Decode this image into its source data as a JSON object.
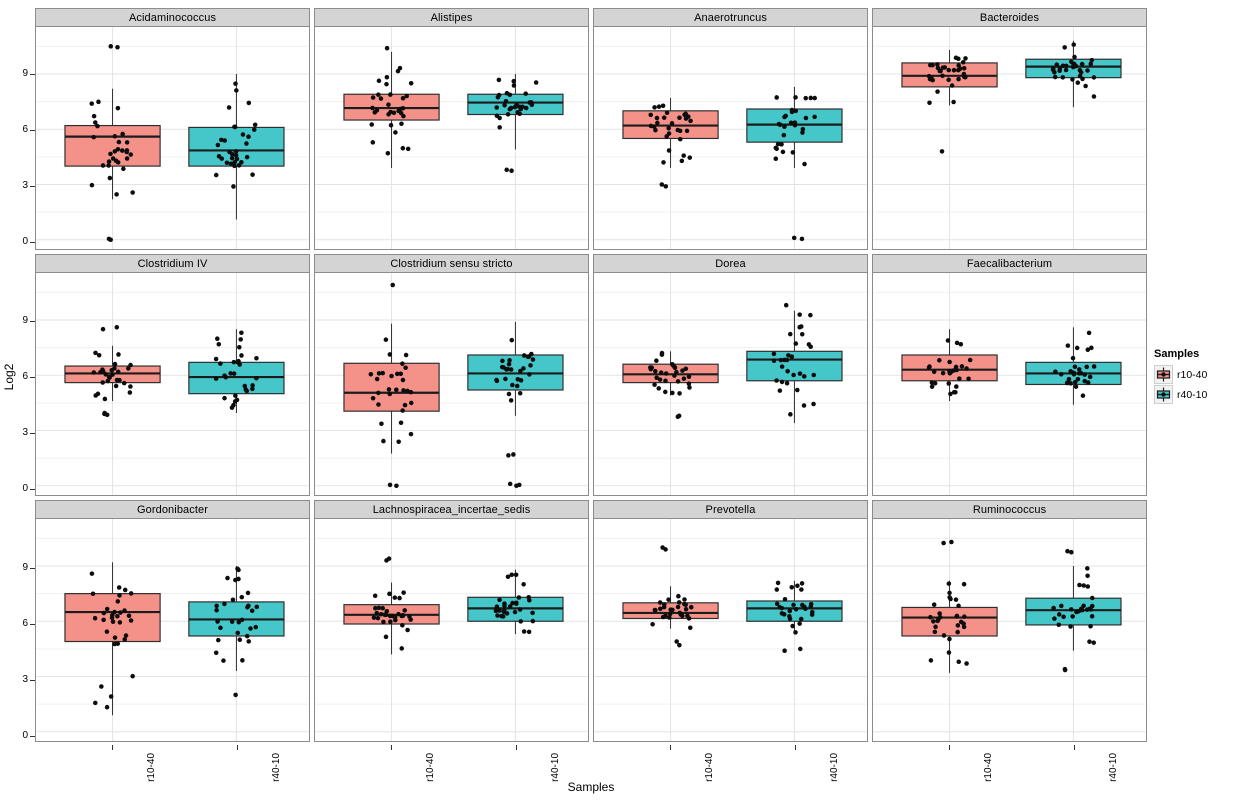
{
  "figure": {
    "x_axis_title": "Samples",
    "y_axis_title": "Log2",
    "legend": {
      "title": "Samples",
      "items": [
        {
          "label": "r10-40",
          "color": "#F4928A"
        },
        {
          "label": "r40-10",
          "color": "#45C6C8"
        }
      ]
    }
  },
  "chart_data": {
    "type": "boxplot",
    "description": "Faceted boxplots with jittered points; 12 genus panels, two sample groups each, y = Log2 abundance",
    "categories": [
      "r10-40",
      "r40-10"
    ],
    "y_ticks": [
      0,
      3,
      6,
      9
    ],
    "y_minor_ticks": [
      1.5,
      4.5,
      7.5,
      10.5
    ],
    "ylim": [
      -0.5,
      11.55
    ],
    "xlabel": "Samples",
    "ylabel": "Log2",
    "legend_position": "right",
    "series_colors": {
      "r10-40": "#F4928A",
      "r40-10": "#45C6C8"
    },
    "panels": [
      {
        "title": "Acidaminococcus",
        "groups": [
          {
            "name": "r10-40",
            "whisker_low": 2.2,
            "q1": 4.0,
            "median": 5.6,
            "q3": 6.2,
            "whisker_high": 8.2,
            "outliers": [
              10.5,
              10.45,
              0.0,
              0.05
            ],
            "n_points": 30,
            "seed": 11
          },
          {
            "name": "r40-10",
            "whisker_low": 1.1,
            "q1": 4.0,
            "median": 4.85,
            "q3": 6.1,
            "whisker_high": 9.0,
            "outliers": [],
            "n_points": 32,
            "seed": 12
          }
        ]
      },
      {
        "title": "Alistipes",
        "groups": [
          {
            "name": "r10-40",
            "whisker_low": 3.9,
            "q1": 6.5,
            "median": 7.15,
            "q3": 7.9,
            "whisker_high": 10.2,
            "outliers": [
              10.4
            ],
            "n_points": 32,
            "seed": 21
          },
          {
            "name": "r40-10",
            "whisker_low": 4.9,
            "q1": 6.8,
            "median": 7.45,
            "q3": 7.9,
            "whisker_high": 9.0,
            "outliers": [
              3.8,
              3.75
            ],
            "n_points": 30,
            "seed": 22
          }
        ]
      },
      {
        "title": "Anaerotruncus",
        "groups": [
          {
            "name": "r10-40",
            "whisker_low": 3.9,
            "q1": 5.5,
            "median": 6.2,
            "q3": 7.0,
            "whisker_high": 7.7,
            "outliers": [
              2.9,
              3.0
            ],
            "n_points": 30,
            "seed": 31
          },
          {
            "name": "r40-10",
            "whisker_low": 3.9,
            "q1": 5.3,
            "median": 6.25,
            "q3": 7.1,
            "whisker_high": 8.3,
            "outliers": [
              0.1,
              0.05
            ],
            "n_points": 30,
            "seed": 32
          }
        ]
      },
      {
        "title": "Bacteroides",
        "groups": [
          {
            "name": "r10-40",
            "whisker_low": 7.3,
            "q1": 8.3,
            "median": 8.9,
            "q3": 9.6,
            "whisker_high": 10.3,
            "outliers": [
              4.8
            ],
            "n_points": 32,
            "seed": 41
          },
          {
            "name": "r40-10",
            "whisker_low": 7.2,
            "q1": 8.8,
            "median": 9.4,
            "q3": 9.8,
            "whisker_high": 10.8,
            "outliers": [],
            "n_points": 32,
            "seed": 42
          }
        ]
      },
      {
        "title": "Clostridium IV",
        "groups": [
          {
            "name": "r10-40",
            "whisker_low": 4.6,
            "q1": 5.6,
            "median": 6.1,
            "q3": 6.5,
            "whisker_high": 7.6,
            "outliers": [
              8.5,
              8.6,
              3.9,
              3.95,
              3.85
            ],
            "n_points": 28,
            "seed": 51
          },
          {
            "name": "r40-10",
            "whisker_low": 3.95,
            "q1": 5.0,
            "median": 5.9,
            "q3": 6.7,
            "whisker_high": 8.5,
            "outliers": [],
            "n_points": 30,
            "seed": 52
          }
        ]
      },
      {
        "title": "Clostridium sensu stricto",
        "groups": [
          {
            "name": "r10-40",
            "whisker_low": 1.75,
            "q1": 4.05,
            "median": 5.05,
            "q3": 6.65,
            "whisker_high": 8.8,
            "outliers": [
              10.9,
              0.05,
              0.0
            ],
            "n_points": 30,
            "seed": 61
          },
          {
            "name": "r40-10",
            "whisker_low": 3.8,
            "q1": 5.2,
            "median": 6.1,
            "q3": 7.1,
            "whisker_high": 8.9,
            "outliers": [
              1.7,
              1.65,
              0.1,
              0.05,
              0.0
            ],
            "n_points": 28,
            "seed": 62
          }
        ]
      },
      {
        "title": "Dorea",
        "groups": [
          {
            "name": "r10-40",
            "whisker_low": 4.9,
            "q1": 5.6,
            "median": 6.05,
            "q3": 6.6,
            "whisker_high": 7.3,
            "outliers": [
              3.8,
              3.75
            ],
            "n_points": 30,
            "seed": 71
          },
          {
            "name": "r40-10",
            "whisker_low": 3.4,
            "q1": 5.7,
            "median": 6.85,
            "q3": 7.3,
            "whisker_high": 9.5,
            "outliers": [
              9.8
            ],
            "n_points": 30,
            "seed": 72
          }
        ]
      },
      {
        "title": "Faecalibacterium",
        "groups": [
          {
            "name": "r10-40",
            "whisker_low": 4.6,
            "q1": 5.7,
            "median": 6.3,
            "q3": 7.1,
            "whisker_high": 8.5,
            "outliers": [],
            "n_points": 28,
            "seed": 81
          },
          {
            "name": "r40-10",
            "whisker_low": 4.4,
            "q1": 5.5,
            "median": 6.1,
            "q3": 6.7,
            "whisker_high": 8.6,
            "outliers": [],
            "n_points": 30,
            "seed": 82
          }
        ]
      },
      {
        "title": "Gordonibacter",
        "groups": [
          {
            "name": "r10-40",
            "whisker_low": 0.9,
            "q1": 4.9,
            "median": 6.5,
            "q3": 7.5,
            "whisker_high": 9.2,
            "outliers": [],
            "n_points": 32,
            "seed": 91
          },
          {
            "name": "r40-10",
            "whisker_low": 3.3,
            "q1": 5.2,
            "median": 6.1,
            "q3": 7.05,
            "whisker_high": 9.0,
            "outliers": [
              2.0
            ],
            "n_points": 30,
            "seed": 92
          }
        ]
      },
      {
        "title": "Lachnospiracea_incertae_sedis",
        "groups": [
          {
            "name": "r10-40",
            "whisker_low": 4.2,
            "q1": 5.85,
            "median": 6.35,
            "q3": 6.9,
            "whisker_high": 8.1,
            "outliers": [
              9.3,
              9.4
            ],
            "n_points": 32,
            "seed": 101
          },
          {
            "name": "r40-10",
            "whisker_low": 5.3,
            "q1": 6.0,
            "median": 6.7,
            "q3": 7.3,
            "whisker_high": 8.8,
            "outliers": [],
            "n_points": 30,
            "seed": 102
          }
        ]
      },
      {
        "title": "Prevotella",
        "groups": [
          {
            "name": "r10-40",
            "whisker_low": 5.6,
            "q1": 6.15,
            "median": 6.45,
            "q3": 7.0,
            "whisker_high": 7.9,
            "outliers": [
              9.9,
              10.0,
              4.9,
              4.7
            ],
            "n_points": 28,
            "seed": 111
          },
          {
            "name": "r40-10",
            "whisker_low": 5.3,
            "q1": 6.0,
            "median": 6.7,
            "q3": 7.1,
            "whisker_high": 8.2,
            "outliers": [
              4.4,
              4.5
            ],
            "n_points": 28,
            "seed": 112
          }
        ]
      },
      {
        "title": "Ruminococcus",
        "groups": [
          {
            "name": "r10-40",
            "whisker_low": 3.2,
            "q1": 5.2,
            "median": 6.2,
            "q3": 6.75,
            "whisker_high": 8.2,
            "outliers": [
              10.3,
              10.25
            ],
            "n_points": 30,
            "seed": 121
          },
          {
            "name": "r40-10",
            "whisker_low": 4.4,
            "q1": 5.8,
            "median": 6.6,
            "q3": 7.25,
            "whisker_high": 9.0,
            "outliers": [
              9.8,
              9.75,
              3.35,
              3.4
            ],
            "n_points": 28,
            "seed": 122
          }
        ]
      }
    ],
    "style": {
      "strip_fill": "#d4d4d4",
      "strip_border": "#8c8c8c",
      "panel_border": "#8c8c8c",
      "grid_major": "#e3e3e3",
      "grid_minor": "#f0f0f0",
      "box_stroke": "#2e2e2e",
      "median_stroke": "#1c1c1c",
      "point_color": "#0d0d0d"
    }
  }
}
